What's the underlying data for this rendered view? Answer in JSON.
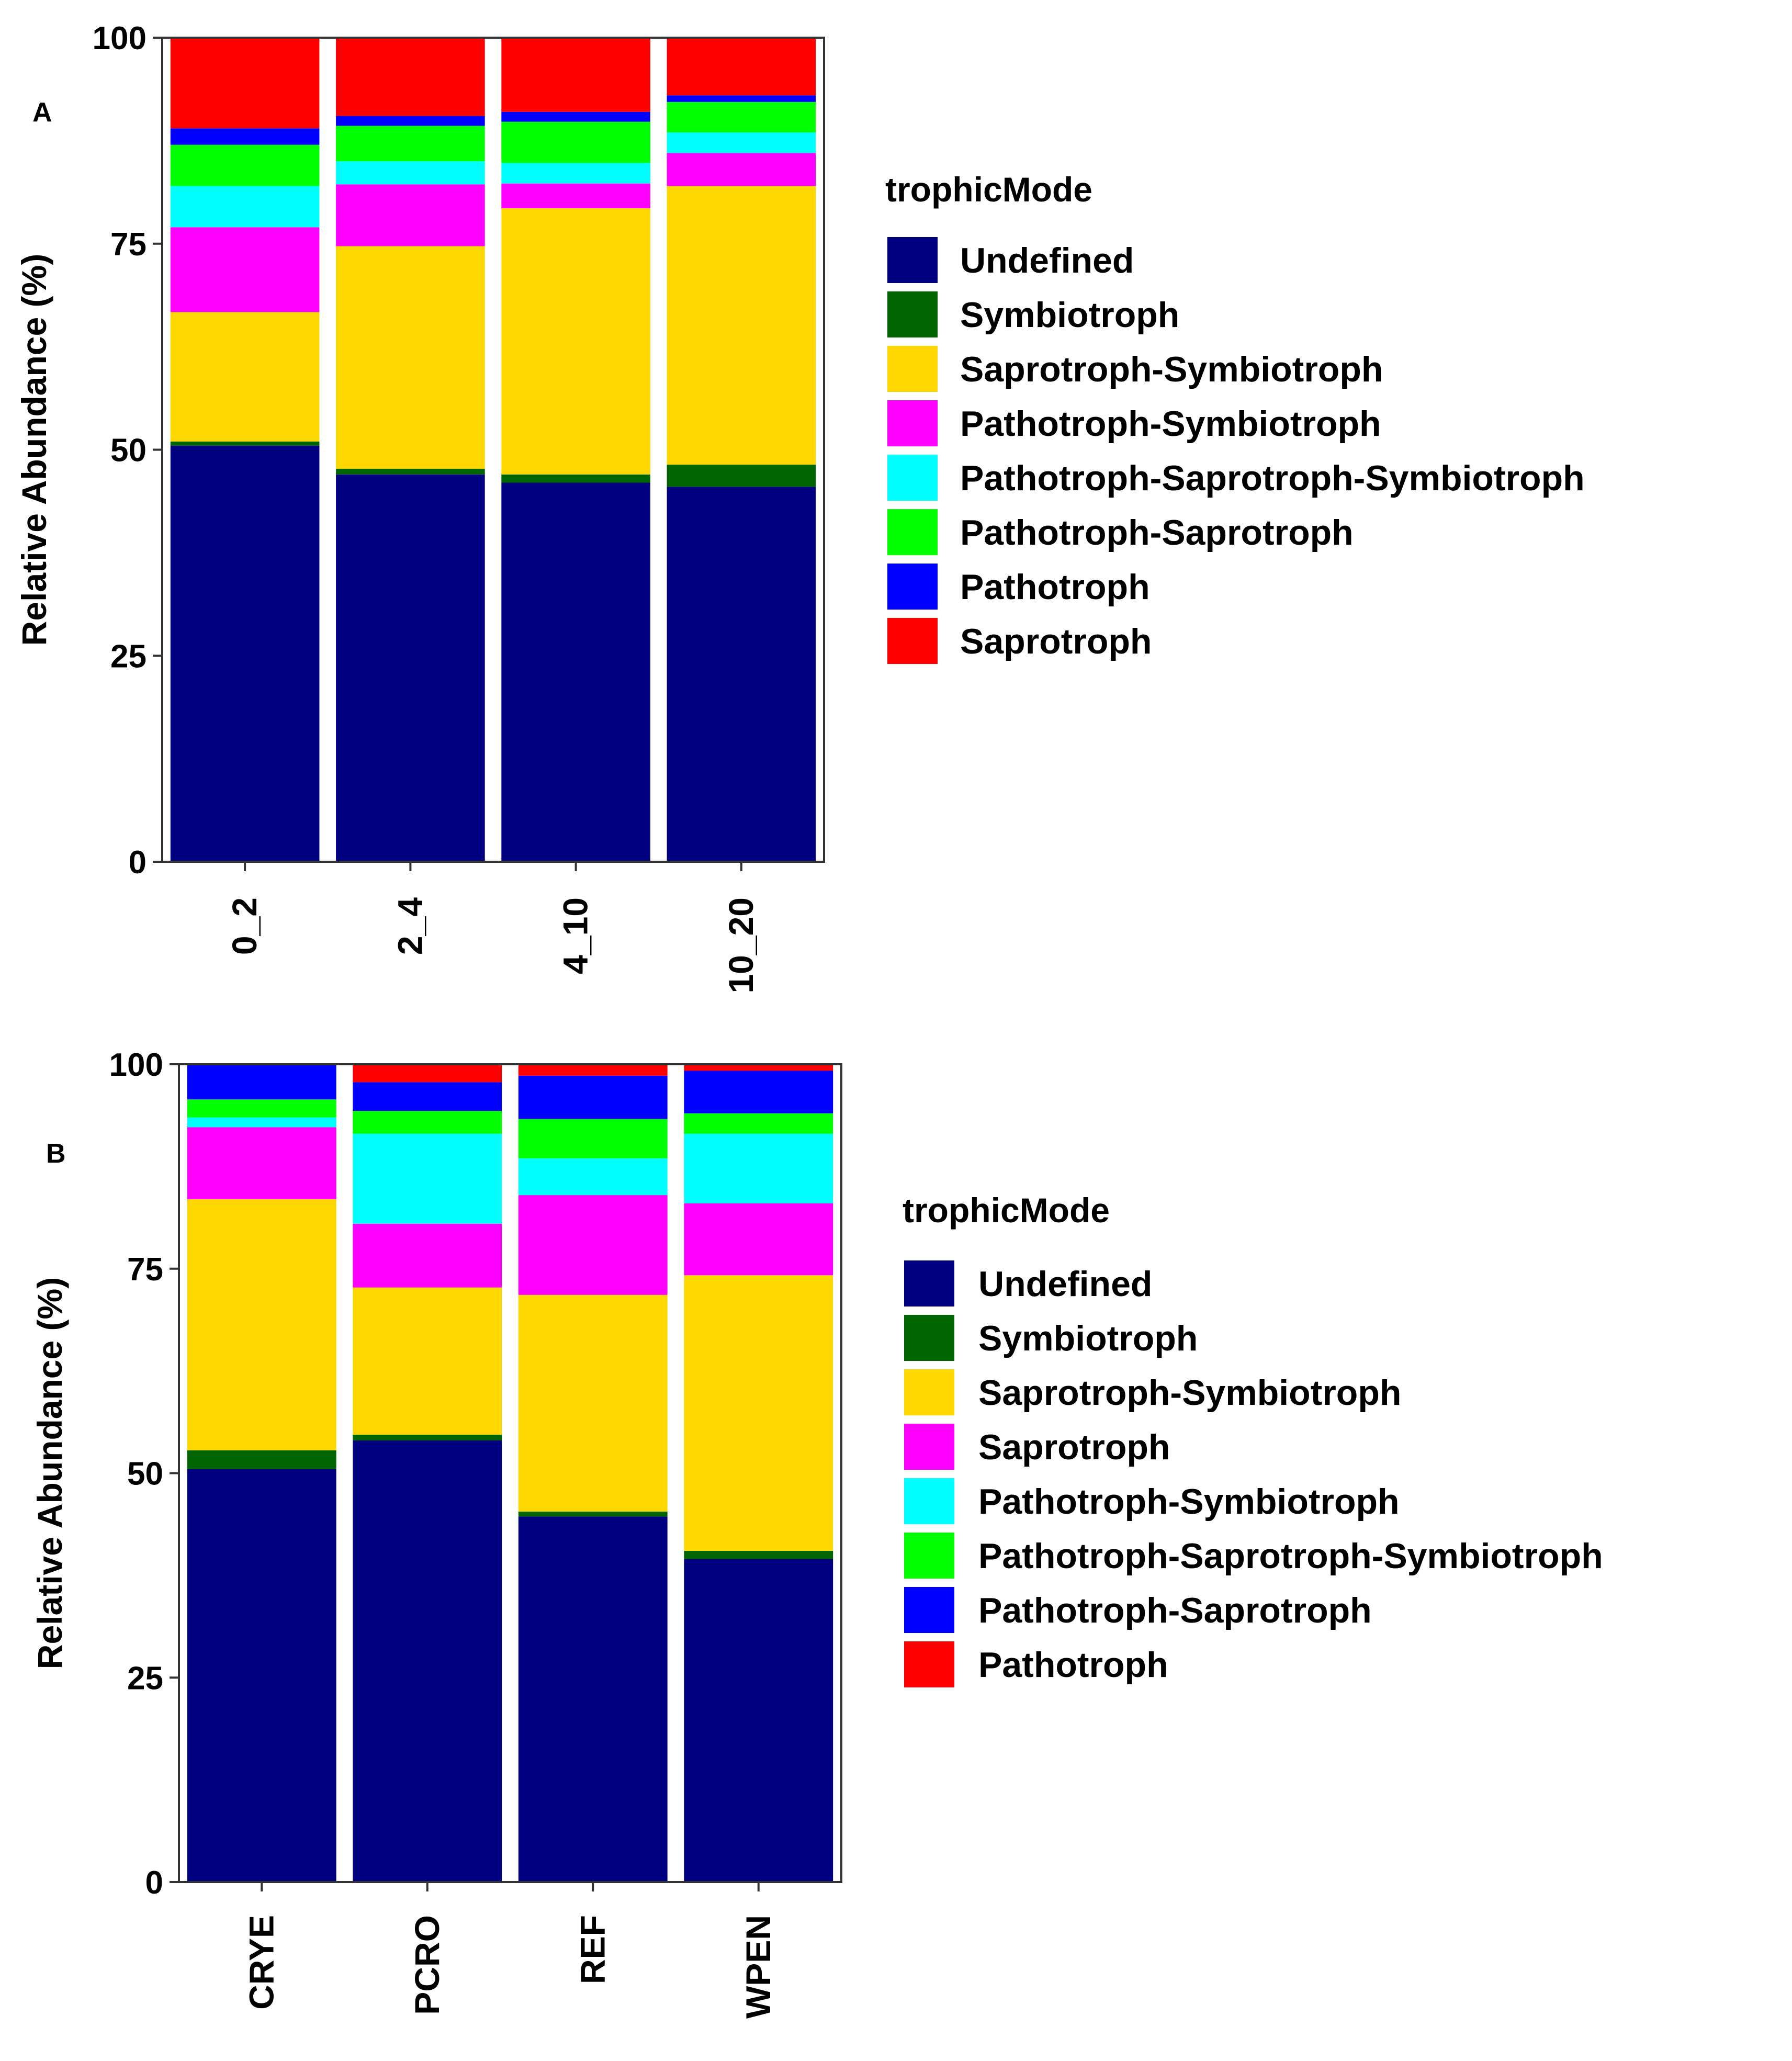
{
  "chart_data": [
    {
      "type": "bar",
      "stacked": true,
      "panel_label": "A",
      "categories": [
        "0_2",
        "2_4",
        "4_10",
        "10_20"
      ],
      "ylabel": "Relative Abundance (%)",
      "xlabel": "",
      "ylim": [
        0,
        100
      ],
      "yticks": [
        0,
        25,
        50,
        75,
        100
      ],
      "grid": false,
      "legend_title": "trophicMode",
      "legend_position": "right",
      "series": [
        {
          "name": "Undefined",
          "color": "#000080",
          "values": [
            50.5,
            47,
            46,
            45.5
          ]
        },
        {
          "name": "Symbiotroph",
          "color": "#006400",
          "values": [
            0.5,
            0.7,
            1,
            2.7
          ]
        },
        {
          "name": "Saprotroph-Symbiotroph",
          "color": "#FFD700",
          "values": [
            15.7,
            27,
            32.3,
            33.8
          ]
        },
        {
          "name": "Pathotroph-Symbiotroph",
          "color": "#FF00FF",
          "values": [
            10.3,
            7.5,
            3,
            4
          ]
        },
        {
          "name": "Pathotroph-Saprotroph-Symbiotroph",
          "color": "#00FFFF",
          "values": [
            5,
            2.8,
            2.5,
            2.5
          ]
        },
        {
          "name": "Pathotroph-Saprotroph",
          "color": "#00FF00",
          "values": [
            5,
            4.3,
            5,
            3.7
          ]
        },
        {
          "name": "Pathotroph",
          "color": "#0000FF",
          "values": [
            2,
            1.2,
            1.2,
            0.8
          ]
        },
        {
          "name": "Saprotroph",
          "color": "#FF0000",
          "values": [
            11,
            9.5,
            9,
            7
          ]
        }
      ]
    },
    {
      "type": "bar",
      "stacked": true,
      "panel_label": "B",
      "categories": [
        "CRYE",
        "PCRO",
        "REF",
        "WPEN"
      ],
      "ylabel": "Relative Abundance (%)",
      "xlabel": "",
      "ylim": [
        0,
        100
      ],
      "yticks": [
        0,
        25,
        50,
        75,
        100
      ],
      "grid": false,
      "legend_title": "trophicMode",
      "legend_position": "right",
      "series": [
        {
          "name": "Undefined",
          "color": "#000080",
          "values": [
            50.5,
            54,
            44.7,
            39.5
          ]
        },
        {
          "name": "Symbiotroph",
          "color": "#006400",
          "values": [
            2.3,
            0.7,
            0.6,
            1
          ]
        },
        {
          "name": "Saprotroph-Symbiotroph",
          "color": "#FFD700",
          "values": [
            30.7,
            18,
            26.5,
            33.7
          ]
        },
        {
          "name": "Saprotroph",
          "color": "#FF00FF",
          "values": [
            8.8,
            7.8,
            12.2,
            8.8
          ]
        },
        {
          "name": "Pathotroph-Symbiotroph",
          "color": "#00FFFF",
          "values": [
            1.2,
            11,
            4.5,
            8.5
          ]
        },
        {
          "name": "Pathotroph-Saprotroph-Symbiotroph",
          "color": "#00FF00",
          "values": [
            2.2,
            2.8,
            4.8,
            2.5
          ]
        },
        {
          "name": "Pathotroph-Saprotroph",
          "color": "#0000FF",
          "values": [
            4.3,
            3.5,
            5.3,
            5.2
          ]
        },
        {
          "name": "Pathotroph",
          "color": "#FF0000",
          "values": [
            0,
            2.2,
            1.4,
            0.8
          ]
        }
      ]
    }
  ]
}
